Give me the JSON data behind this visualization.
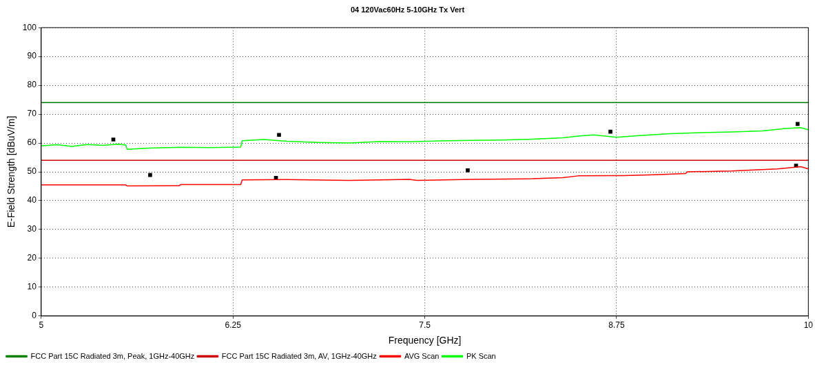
{
  "chart_data": {
    "type": "line",
    "title": "04 120Vac60Hz 5-10GHz Tx Vert",
    "xlabel": "Frequency [GHz]",
    "ylabel": "E-Field Strength [dBuV/m]",
    "xlim": [
      5,
      10
    ],
    "xticks": [
      5,
      6.25,
      7.5,
      8.75,
      10
    ],
    "ylim": [
      0,
      100
    ],
    "yticks": [
      0,
      10,
      20,
      30,
      40,
      50,
      60,
      70,
      80,
      90,
      100
    ],
    "grid": true,
    "legend": "bottom",
    "series": [
      {
        "name": "FCC Part 15C Radiated 3m, Peak, 1GHz-40GHz",
        "color": "#008000",
        "x": [
          5,
          10
        ],
        "values": [
          74,
          74
        ]
      },
      {
        "name": "FCC Part 15C Radiated 3m, AV, 1GHz-40GHz",
        "color": "#cc0000",
        "x": [
          5,
          10
        ],
        "values": [
          54,
          54
        ]
      },
      {
        "name": "AVG Scan",
        "color": "#ff0000",
        "x": [
          5,
          5.5,
          5.55,
          5.56,
          5.9,
          5.91,
          6.3,
          6.31,
          6.6,
          7.0,
          7.4,
          7.45,
          7.8,
          8.2,
          8.4,
          8.5,
          8.8,
          9.0,
          9.2,
          9.21,
          9.5,
          9.8,
          9.95,
          10
        ],
        "values": [
          45.5,
          45.5,
          45.5,
          45.1,
          45.2,
          45.6,
          45.6,
          47.2,
          47.3,
          47.0,
          47.4,
          47.0,
          47.4,
          47.6,
          48.0,
          48.6,
          48.7,
          49.0,
          49.4,
          50.0,
          50.3,
          51.0,
          51.8,
          51.0
        ]
      },
      {
        "name": "PK Scan",
        "color": "#00ff00",
        "x": [
          5,
          5.1,
          5.2,
          5.3,
          5.4,
          5.5,
          5.55,
          5.56,
          5.7,
          5.9,
          6.1,
          6.3,
          6.31,
          6.45,
          6.6,
          6.8,
          7.0,
          7.2,
          7.4,
          7.6,
          7.8,
          8.0,
          8.2,
          8.4,
          8.5,
          8.6,
          8.75,
          8.9,
          9.1,
          9.3,
          9.5,
          9.7,
          9.85,
          9.95,
          10
        ],
        "values": [
          59.0,
          59.4,
          58.8,
          59.5,
          59.2,
          59.6,
          59.3,
          57.8,
          58.2,
          58.5,
          58.4,
          58.6,
          60.8,
          61.2,
          60.6,
          60.2,
          60.0,
          60.5,
          60.4,
          60.7,
          60.9,
          61.0,
          61.3,
          61.8,
          62.4,
          62.8,
          62.0,
          62.6,
          63.2,
          63.6,
          63.8,
          64.2,
          65.0,
          65.3,
          64.6
        ]
      },
      {
        "type": "scatter",
        "color": "#000000",
        "marker": "square",
        "x": [
          5.47,
          5.71,
          6.53,
          6.55,
          7.78,
          8.71,
          9.92,
          9.93
        ],
        "values": [
          61.2,
          48.9,
          47.9,
          62.8,
          50.5,
          63.9,
          52.1,
          66.6
        ]
      }
    ]
  }
}
